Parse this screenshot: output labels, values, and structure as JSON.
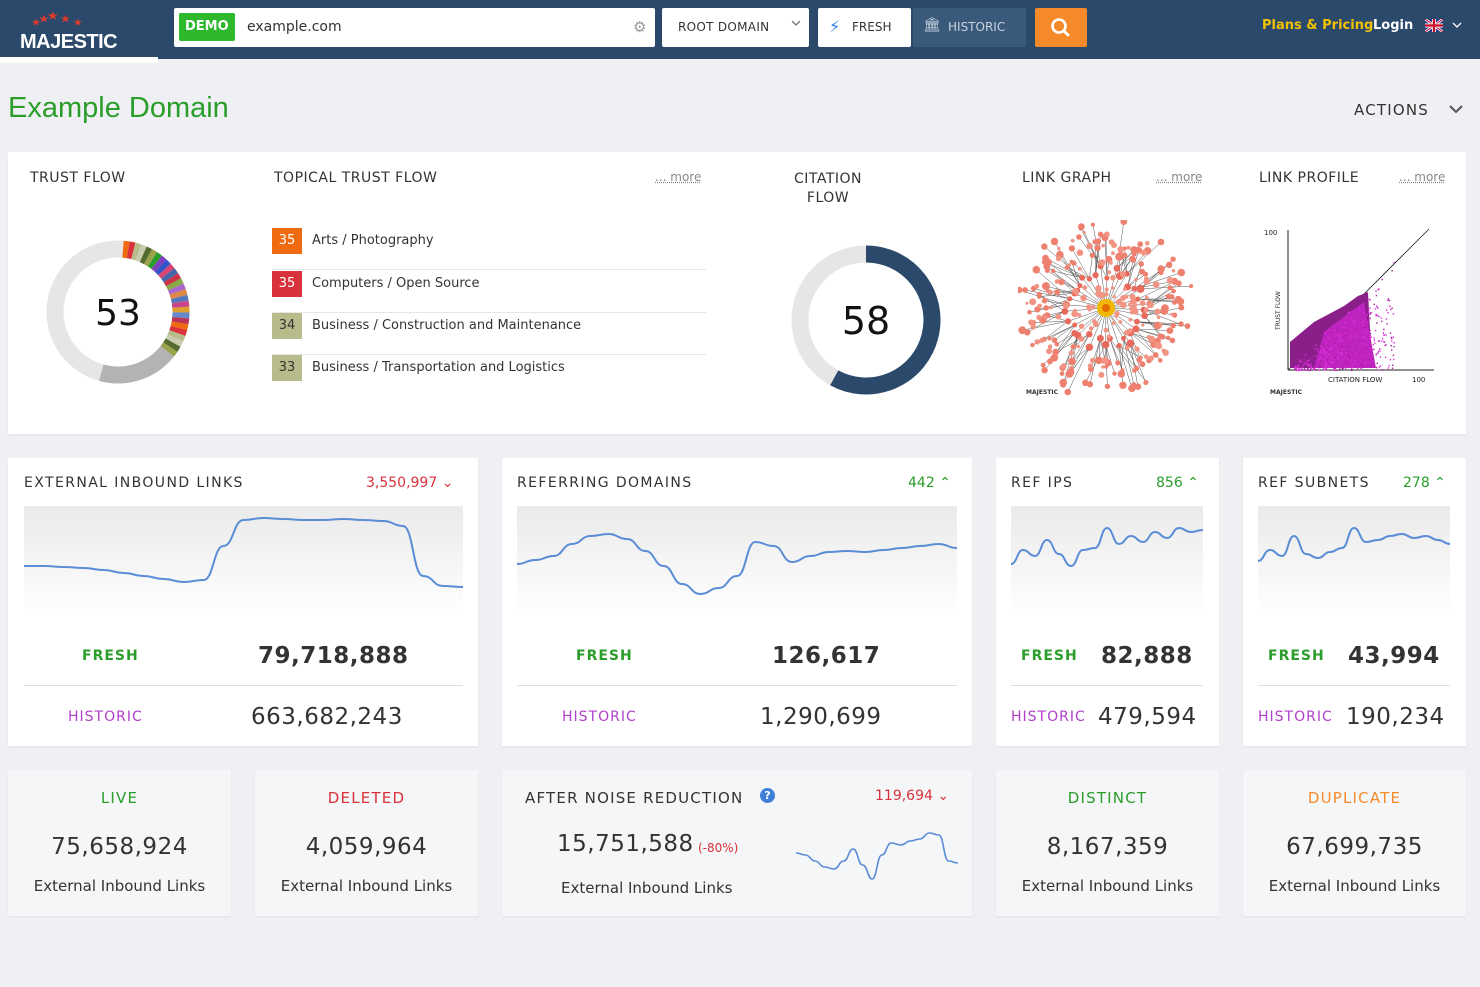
{
  "header": {
    "logo_text": "MAJESTIC",
    "demo_badge": "DEMO",
    "search_value": "example.com",
    "scope_select": "ROOT DOMAIN",
    "index_fresh": "FRESH",
    "index_historic": "HISTORIC",
    "plans_link": "Plans & Pricing",
    "login_link": "Login"
  },
  "page": {
    "title": "Example Domain",
    "actions_label": "ACTIONS"
  },
  "summary": {
    "trust_flow": {
      "title": "TRUST FLOW",
      "value": "53",
      "score": 53
    },
    "topical_trust_flow": {
      "title": "TOPICAL TRUST FLOW",
      "more": "... more",
      "items": [
        {
          "score": "35",
          "label": "Arts / Photography",
          "color": "#f06a0f"
        },
        {
          "score": "35",
          "label": "Computers / Open Source",
          "color": "#d9323a"
        },
        {
          "score": "34",
          "label": "Business / Construction and Maintenance",
          "color": "#b8bc8a"
        },
        {
          "score": "33",
          "label": "Business / Transportation and Logistics",
          "color": "#b8bc8a"
        }
      ]
    },
    "citation_flow": {
      "title_line1": "CITATION",
      "title_line2": "FLOW",
      "value": "58",
      "score": 58
    },
    "link_graph": {
      "title": "LINK GRAPH",
      "more": "... more",
      "watermark": "MAJESTIC"
    },
    "link_profile": {
      "title": "LINK PROFILE",
      "more": "... more",
      "y_max": "100",
      "x_max": "100",
      "y_label": "TRUST FLOW",
      "x_label": "CITATION FLOW",
      "watermark": "MAJESTIC"
    }
  },
  "metrics": [
    {
      "title": "EXTERNAL INBOUND LINKS",
      "delta": "3,550,997",
      "delta_dir": "down",
      "fresh_label": "FRESH",
      "fresh": "79,718,888",
      "historic_label": "HISTORIC",
      "historic": "663,682,243"
    },
    {
      "title": "REFERRING DOMAINS",
      "delta": "442",
      "delta_dir": "up",
      "fresh_label": "FRESH",
      "fresh": "126,617",
      "historic_label": "HISTORIC",
      "historic": "1,290,699"
    },
    {
      "title": "REF IPS",
      "delta": "856",
      "delta_dir": "up",
      "fresh_label": "FRESH",
      "fresh": "82,888",
      "historic_label": "HISTORIC",
      "historic": "479,594"
    },
    {
      "title": "REF SUBNETS",
      "delta": "278",
      "delta_dir": "up",
      "fresh_label": "FRESH",
      "fresh": "43,994",
      "historic_label": "HISTORIC",
      "historic": "190,234"
    }
  ],
  "breakdown": {
    "live": {
      "title": "LIVE",
      "value": "75,658,924",
      "sub": "External Inbound Links"
    },
    "deleted": {
      "title": "DELETED",
      "value": "4,059,964",
      "sub": "External Inbound Links"
    },
    "noise": {
      "title": "AFTER NOISE REDUCTION",
      "delta": "119,694",
      "value": "15,751,588",
      "pct": "(-80%)",
      "sub": "External Inbound Links"
    },
    "distinct": {
      "title": "DISTINCT",
      "value": "8,167,359",
      "sub": "External Inbound Links"
    },
    "duplicate": {
      "title": "DUPLICATE",
      "value": "67,699,735",
      "sub": "External Inbound Links"
    }
  },
  "colors": {
    "header_bg": "#2b4a6b",
    "accent_green": "#2a9d2a",
    "accent_red": "#d9323a",
    "accent_orange": "#f58a2a",
    "historic_purple": "#b040c8",
    "citation_ring": "#2b4a6b",
    "spark_line": "#5b8dd6"
  }
}
